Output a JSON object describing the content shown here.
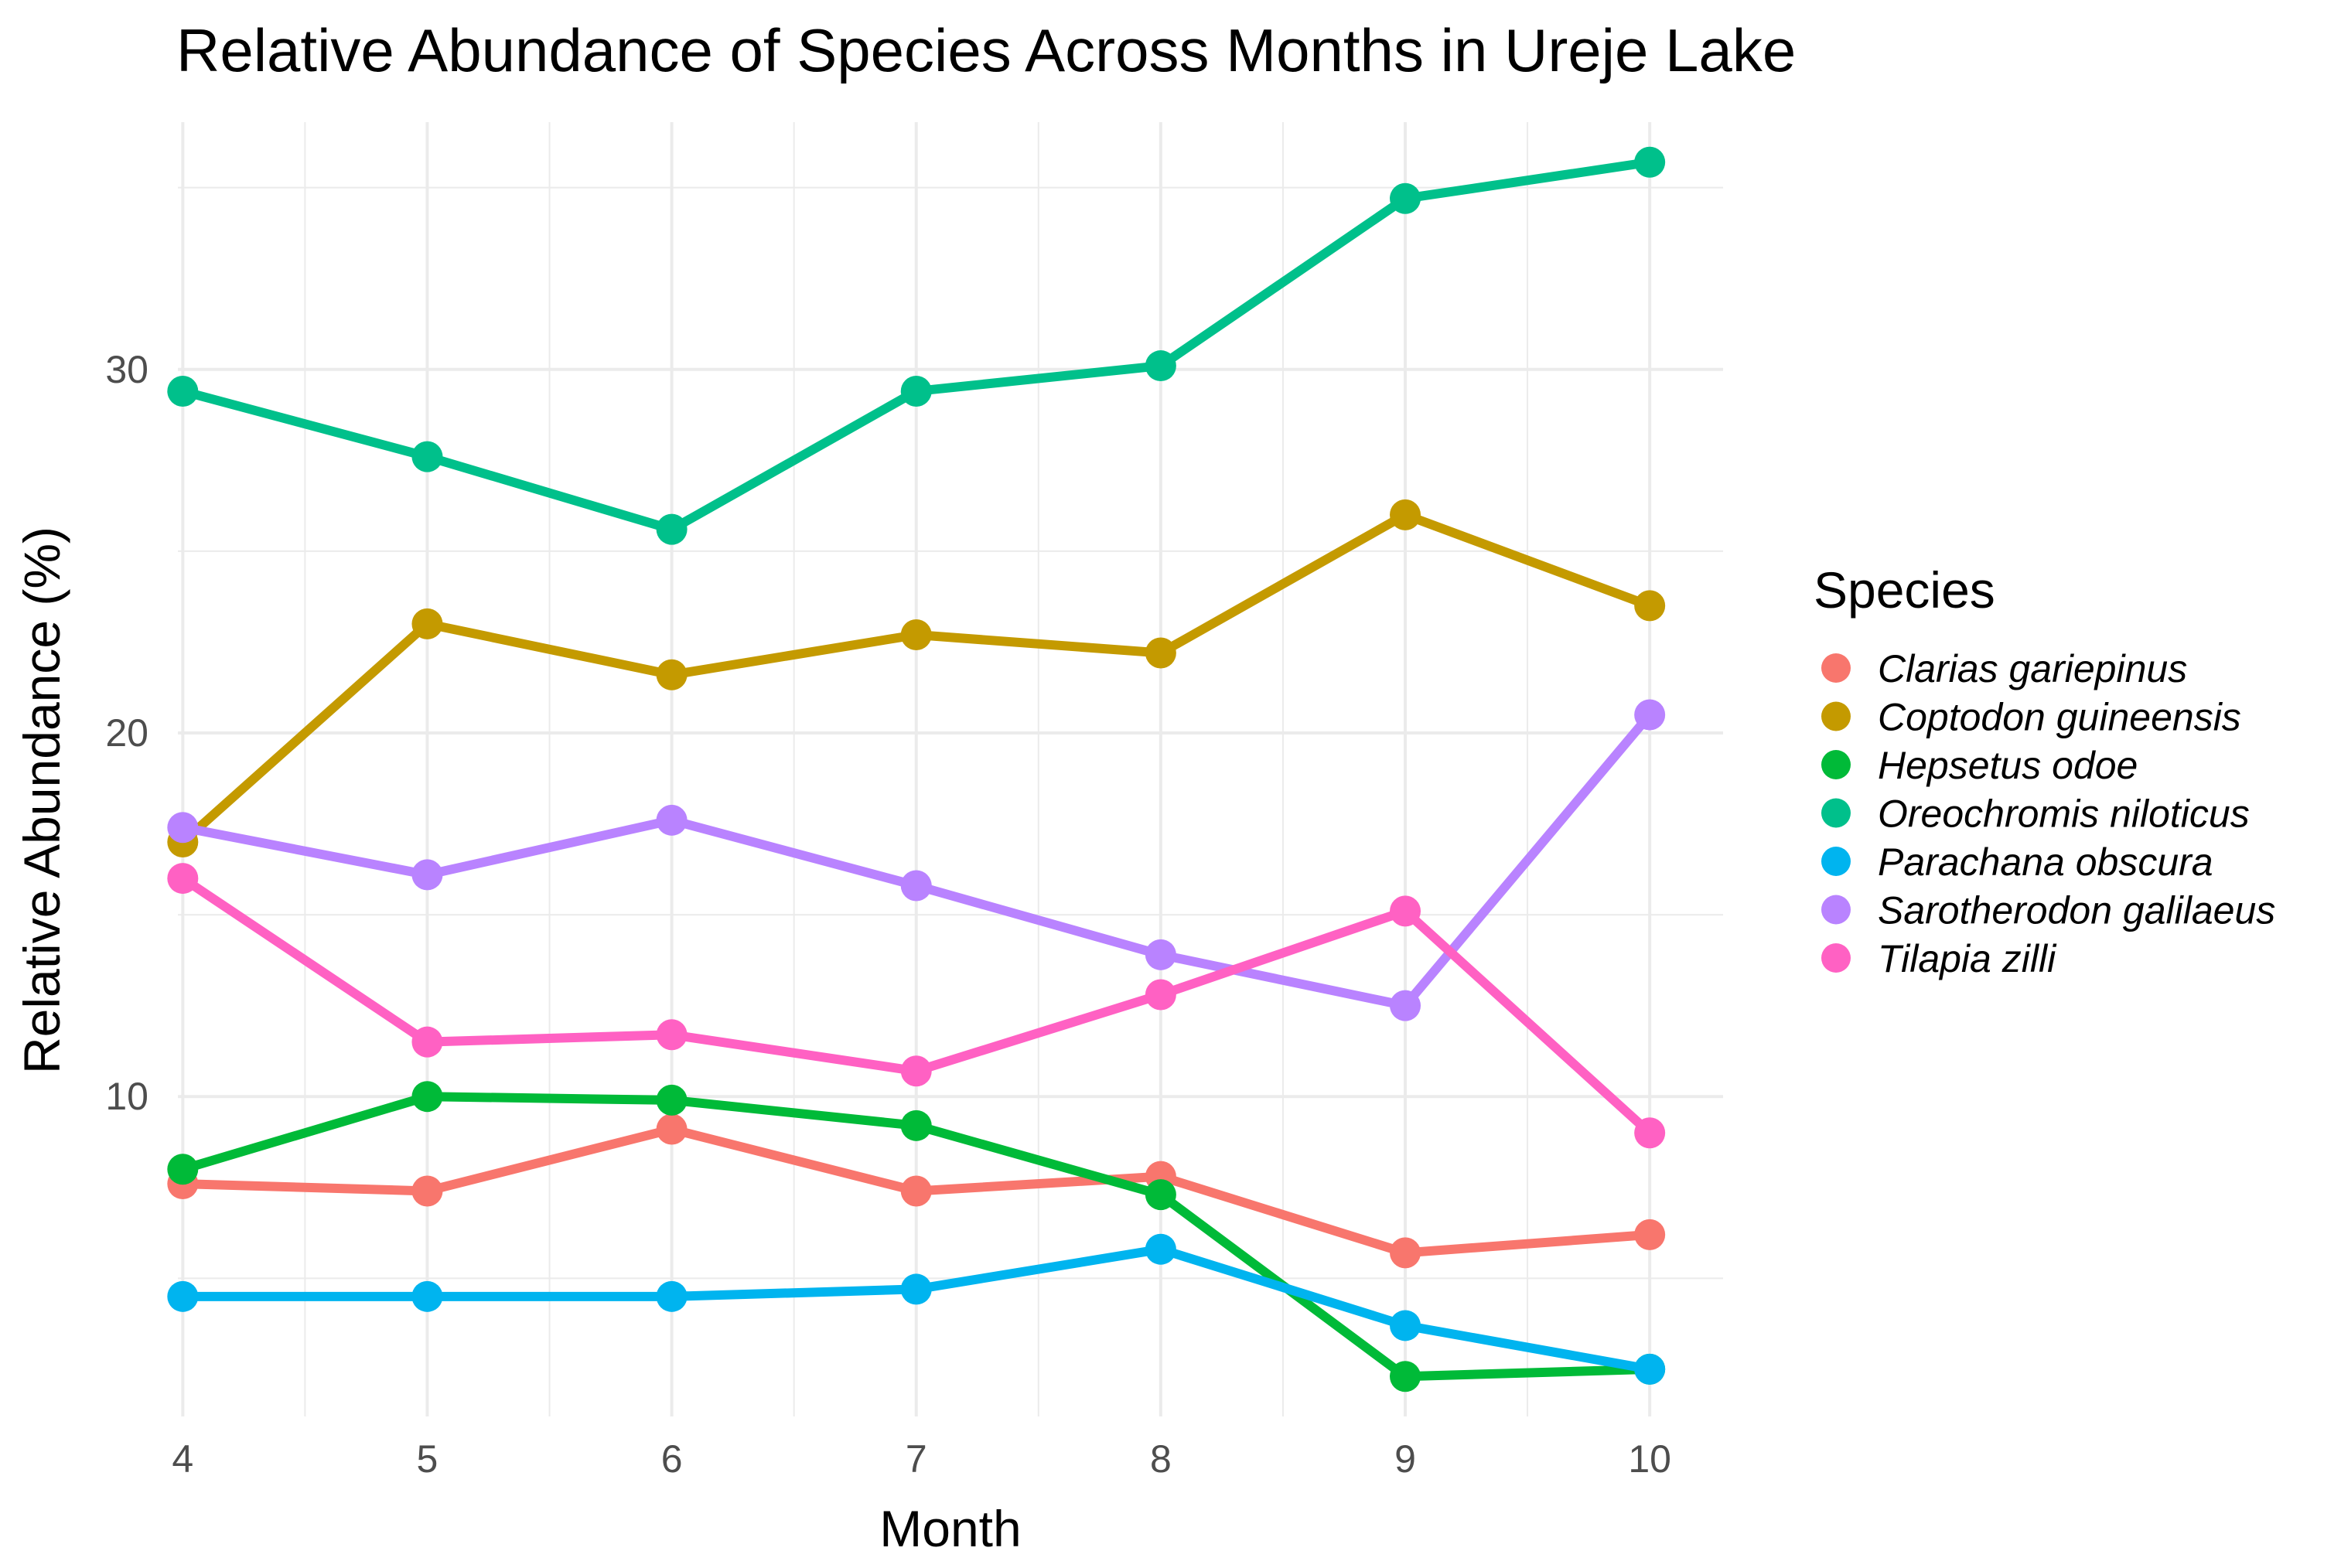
{
  "chart_data": {
    "type": "line",
    "title": "Relative Abundance of Species Across Months in Ureje Lake",
    "xlabel": "Month",
    "ylabel": "Relative Abundance (%)",
    "x": [
      4,
      5,
      6,
      7,
      8,
      9,
      10
    ],
    "x_tick_labels": [
      "4",
      "5",
      "6",
      "7",
      "8",
      "9",
      "10"
    ],
    "y_ticks": [
      10,
      20,
      30
    ],
    "y_tick_labels": [
      "10",
      "20",
      "30"
    ],
    "xlim": [
      3.98,
      10.3
    ],
    "ylim": [
      1.2,
      36.8
    ],
    "grid": true,
    "legend": {
      "title": "Species",
      "position": "right"
    },
    "series": [
      {
        "name": "Clarias gariepinus",
        "color": "#F8766D",
        "values": [
          7.6,
          7.4,
          9.1,
          7.4,
          7.8,
          5.7,
          6.2
        ]
      },
      {
        "name": "Coptodon guineensis",
        "color": "#C49A00",
        "values": [
          17.0,
          23.0,
          21.6,
          22.7,
          22.2,
          26.0,
          23.5
        ]
      },
      {
        "name": "Hepsetus odoe",
        "color": "#00BA38",
        "values": [
          8.0,
          10.0,
          9.9,
          9.2,
          7.3,
          2.3,
          2.5
        ]
      },
      {
        "name": "Oreochromis niloticus",
        "color": "#00C08B",
        "values": [
          29.4,
          27.6,
          25.6,
          29.4,
          30.1,
          34.7,
          35.7
        ]
      },
      {
        "name": "Parachana obscura",
        "color": "#00B4EF",
        "values": [
          4.5,
          4.5,
          4.5,
          4.7,
          5.8,
          3.7,
          2.5
        ]
      },
      {
        "name": "Sarotherodon galilaeus",
        "color": "#B983FF",
        "values": [
          17.4,
          16.1,
          17.6,
          15.8,
          13.9,
          12.5,
          20.5
        ]
      },
      {
        "name": "Tilapia zilli",
        "color": "#FF61C3",
        "values": [
          16.0,
          11.5,
          11.7,
          10.7,
          12.8,
          15.1,
          9.0
        ]
      }
    ]
  }
}
